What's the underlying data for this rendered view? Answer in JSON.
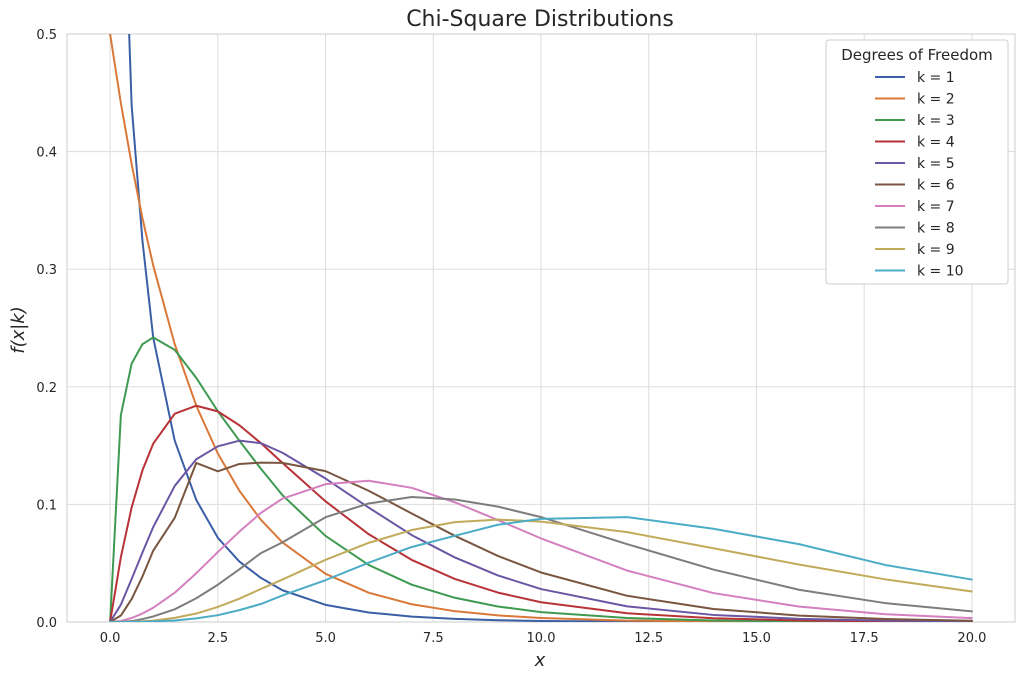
{
  "chart_data": {
    "type": "line",
    "title": "Chi-Square Distributions",
    "xlabel": "x",
    "ylabel": "f(x|k)",
    "xlim": [
      -1.0,
      21.0
    ],
    "ylim": [
      0,
      0.5
    ],
    "x_ticks": [
      0.0,
      2.5,
      5.0,
      7.5,
      10.0,
      12.5,
      15.0,
      17.5,
      20.0
    ],
    "x_tick_labels": [
      "0.0",
      "2.5",
      "5.0",
      "7.5",
      "10.0",
      "12.5",
      "15.0",
      "17.5",
      "20.0"
    ],
    "y_ticks": [
      0.0,
      0.1,
      0.2,
      0.3,
      0.4,
      0.5
    ],
    "y_tick_labels": [
      "0.0",
      "0.1",
      "0.2",
      "0.3",
      "0.4",
      "0.5"
    ],
    "grid": true,
    "legend": {
      "title": "Degrees of Freedom",
      "position": "top-right"
    },
    "x": [
      0.0,
      0.25,
      0.5,
      0.75,
      1.0,
      1.5,
      2.0,
      2.5,
      3.0,
      3.5,
      4.0,
      5.0,
      6.0,
      7.0,
      8.0,
      9.0,
      10.0,
      12.0,
      14.0,
      16.0,
      18.0,
      20.0
    ],
    "series": [
      {
        "name": "k = 1",
        "color": "#3b5fa6",
        "values": [
          0.5,
          0.7041,
          0.4394,
          0.3245,
          0.242,
          0.1542,
          0.1038,
          0.0716,
          0.0514,
          0.0375,
          0.027,
          0.0146,
          0.0081,
          0.0046,
          0.0027,
          0.0015,
          0.0009,
          0.0003,
          0.0001,
          0.0,
          0.0,
          0.0
        ]
      },
      {
        "name": "k = 2",
        "color": "#d97838",
        "values": [
          0.5,
          0.4412,
          0.3894,
          0.3436,
          0.3033,
          0.2362,
          0.1839,
          0.1433,
          0.1116,
          0.0869,
          0.0677,
          0.041,
          0.0249,
          0.0151,
          0.0092,
          0.0056,
          0.0034,
          0.0012,
          0.0005,
          0.0002,
          0.0001,
          0.0
        ]
      },
      {
        "name": "k = 3",
        "color": "#3f9a51",
        "values": [
          0.0,
          0.176,
          0.2197,
          0.2362,
          0.242,
          0.2314,
          0.2076,
          0.1792,
          0.1542,
          0.1303,
          0.1079,
          0.0732,
          0.0485,
          0.0317,
          0.0206,
          0.0132,
          0.0084,
          0.0034,
          0.0013,
          0.0005,
          0.0002,
          0.0001
        ]
      },
      {
        "name": "k = 4",
        "color": "#b83337",
        "values": [
          0.0,
          0.0551,
          0.0974,
          0.1289,
          0.1516,
          0.1771,
          0.1839,
          0.1791,
          0.1673,
          0.1521,
          0.1353,
          0.1026,
          0.0747,
          0.0528,
          0.0366,
          0.025,
          0.0168,
          0.0074,
          0.0032,
          0.0013,
          0.0006,
          0.0002
        ]
      },
      {
        "name": "k = 5",
        "color": "#6a56a3",
        "values": [
          0.0,
          0.0147,
          0.0366,
          0.059,
          0.0807,
          0.1157,
          0.1384,
          0.1494,
          0.1542,
          0.1521,
          0.1439,
          0.122,
          0.0973,
          0.0739,
          0.0549,
          0.0396,
          0.028,
          0.0133,
          0.006,
          0.0027,
          0.0012,
          0.0005
        ]
      },
      {
        "name": "k = 6",
        "color": "#7a5540",
        "values": [
          0.0,
          0.0055,
          0.0195,
          0.0386,
          0.0606,
          0.0886,
          0.1353,
          0.1281,
          0.1344,
          0.1355,
          0.1353,
          0.1283,
          0.1116,
          0.0923,
          0.0733,
          0.0562,
          0.0421,
          0.0223,
          0.0111,
          0.0054,
          0.0025,
          0.0011
        ]
      },
      {
        "name": "k = 7",
        "color": "#d47fbf",
        "values": [
          0.0,
          0.0009,
          0.0034,
          0.0072,
          0.0121,
          0.0249,
          0.0415,
          0.0595,
          0.0768,
          0.0928,
          0.1049,
          0.1172,
          0.1201,
          0.1141,
          0.1018,
          0.0867,
          0.0711,
          0.0437,
          0.0246,
          0.0131,
          0.0066,
          0.0033
        ]
      },
      {
        "name": "k = 8",
        "color": "#7d7d7d",
        "values": [
          0.0,
          0.0002,
          0.0008,
          0.0025,
          0.0047,
          0.0108,
          0.0202,
          0.0317,
          0.0448,
          0.0586,
          0.0677,
          0.0891,
          0.1008,
          0.1063,
          0.1042,
          0.0981,
          0.0892,
          0.0662,
          0.0446,
          0.0273,
          0.016,
          0.009
        ]
      },
      {
        "name": "k = 9",
        "color": "#c2aa5b",
        "values": [
          0.0,
          0.0001,
          0.0002,
          0.0006,
          0.0012,
          0.0035,
          0.0072,
          0.0128,
          0.0198,
          0.0281,
          0.0361,
          0.0529,
          0.0673,
          0.0782,
          0.0849,
          0.0871,
          0.0854,
          0.0764,
          0.0627,
          0.0488,
          0.0362,
          0.0259
        ]
      },
      {
        "name": "k = 10",
        "color": "#4bacc6",
        "values": [
          0.0,
          0.0,
          0.0001,
          0.0002,
          0.0005,
          0.0013,
          0.0031,
          0.0058,
          0.0101,
          0.0153,
          0.0226,
          0.0356,
          0.0504,
          0.0638,
          0.0733,
          0.0827,
          0.0877,
          0.0892,
          0.0793,
          0.0661,
          0.0484,
          0.0361
        ]
      }
    ]
  }
}
